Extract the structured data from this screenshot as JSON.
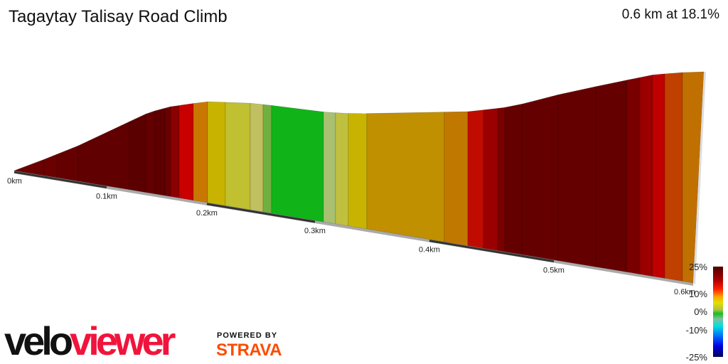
{
  "title": "Tagaytay Talisay Road Climb",
  "summary": "0.6 km at 18.1%",
  "chart_data": {
    "type": "area",
    "title": "Tagaytay Talisay Road Climb",
    "x_ticks": [
      "0km",
      "0.1km",
      "0.2km",
      "0.3km",
      "0.4km",
      "0.5km",
      "0.6km"
    ],
    "distance_km": 0.6,
    "avg_grade_pct": 18.1,
    "segment_colors": [
      "#6b0000",
      "#6b0000",
      "#650000",
      "#600000",
      "#5a0000",
      "#650000",
      "#5e0000",
      "#6b0000",
      "#8b0000",
      "#c80000",
      "#c87800",
      "#c8b400",
      "#c0c030",
      "#c0c060",
      "#70b040",
      "#10b418",
      "#a8c070",
      "#c0c040",
      "#c8b400",
      "#c09000",
      "#c07800",
      "#c00c00",
      "#9a0000",
      "#7a0000",
      "#650000",
      "#650000",
      "#650000",
      "#650000",
      "#7a0000",
      "#9a0000",
      "#c00000",
      "#c04000",
      "#c07000"
    ],
    "legend": {
      "ticks": [
        "25%",
        "10%",
        "0%",
        "-10%",
        "-25%"
      ],
      "range": [
        -25,
        25
      ]
    }
  },
  "branding": {
    "logo_part1": "velo",
    "logo_part2": "viewer",
    "powered_by": "POWERED BY",
    "strava": "STRAVA"
  }
}
